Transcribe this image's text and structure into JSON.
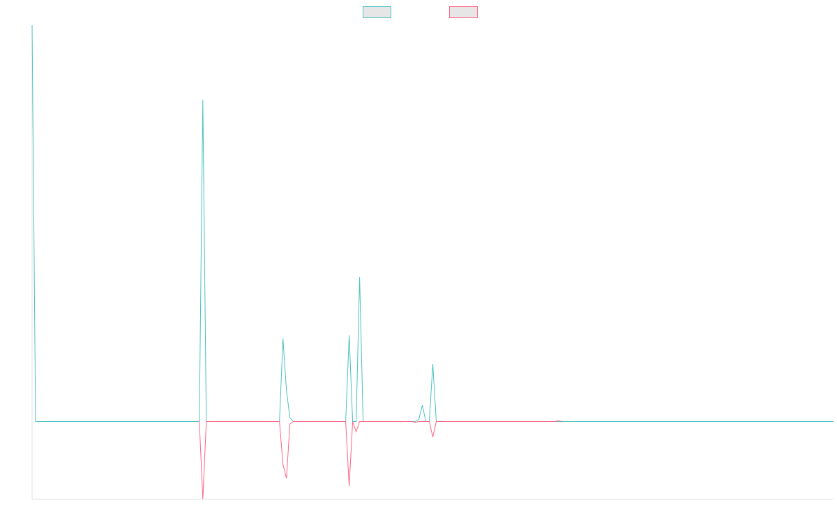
{
  "chart_data": {
    "type": "line",
    "title": "",
    "xlabel": "",
    "ylabel": "",
    "legend": {
      "position": "top-center",
      "entries": [
        {
          "name": "",
          "color": "#4bc0c0"
        },
        {
          "name": "",
          "color": "#ff6384"
        }
      ]
    },
    "grid": false,
    "xlim": [
      0,
      230
    ],
    "ylim": [
      -100,
      510
    ],
    "axes": {
      "x_axis_line": true,
      "y_axis_line": true,
      "tick_labels": false
    },
    "series": [
      {
        "color": "#4bc0c0",
        "points": [
          [
            0,
            510
          ],
          [
            1,
            0
          ],
          [
            48,
            0
          ],
          [
            49,
            414
          ],
          [
            50,
            0
          ],
          [
            71,
            0
          ],
          [
            72,
            107
          ],
          [
            73,
            40
          ],
          [
            74,
            5
          ],
          [
            75,
            0
          ],
          [
            90,
            0
          ],
          [
            91,
            111
          ],
          [
            92,
            0
          ],
          [
            93,
            0
          ],
          [
            94,
            186
          ],
          [
            95,
            0
          ],
          [
            110,
            0
          ],
          [
            111,
            3
          ],
          [
            112,
            21
          ],
          [
            113,
            0
          ],
          [
            114,
            0
          ],
          [
            115,
            74
          ],
          [
            116,
            0
          ],
          [
            230,
            0
          ]
        ]
      },
      {
        "color": "#ff6384",
        "points": [
          [
            48,
            0
          ],
          [
            49,
            -100
          ],
          [
            50,
            0
          ],
          [
            71,
            0
          ],
          [
            72,
            -55
          ],
          [
            73,
            -73
          ],
          [
            74,
            -3
          ],
          [
            75,
            0
          ],
          [
            90,
            0
          ],
          [
            91,
            -83
          ],
          [
            92,
            0
          ],
          [
            93,
            -13
          ],
          [
            94,
            0
          ],
          [
            109,
            0
          ],
          [
            110,
            -1
          ],
          [
            111,
            0
          ],
          [
            114,
            0
          ],
          [
            115,
            -20
          ],
          [
            116,
            0
          ],
          [
            150,
            0
          ],
          [
            151,
            1
          ],
          [
            152,
            0
          ]
        ]
      }
    ]
  }
}
